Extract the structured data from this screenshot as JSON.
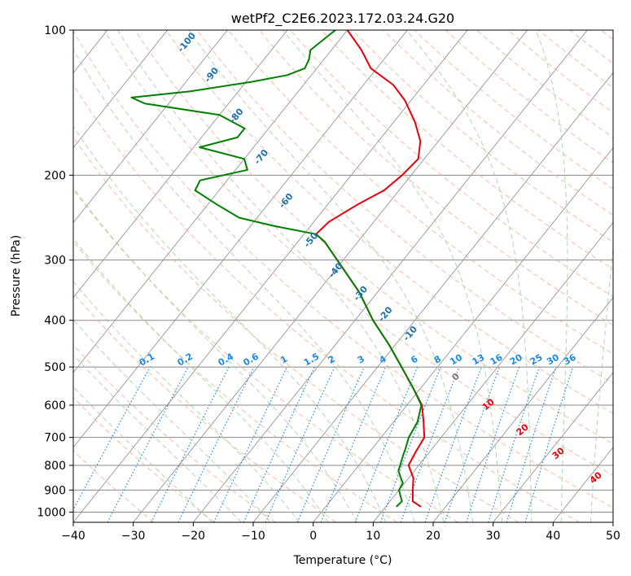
{
  "title": "wetPf2_C2E6.2023.172.03.24.G20",
  "colors": {
    "temperature": "#e8000b",
    "dewpoint": "#008000",
    "dry_adiabat": "#f4a582",
    "moist_adiabat": "#98d098",
    "mixing_ratio": "#1e88e5",
    "isotherm": "#888888"
  },
  "chart_data": {
    "type": "skew-t log-p",
    "xlabel": "Temperature (°C)",
    "ylabel": "Pressure (hPa)",
    "xlim": [
      -40,
      50
    ],
    "ylim": [
      1050,
      100
    ],
    "y_scale": "log",
    "x_ticks": [
      -40,
      -30,
      -20,
      -10,
      0,
      10,
      20,
      30,
      40,
      50
    ],
    "y_ticks": [
      100,
      200,
      300,
      400,
      500,
      600,
      700,
      800,
      900,
      1000
    ],
    "grid": true,
    "series": [
      {
        "key": "temperature",
        "points": [
          [
            975,
            15.9
          ],
          [
            950,
            13.8
          ],
          [
            900,
            12.3
          ],
          [
            850,
            10.8
          ],
          [
            800,
            8.3
          ],
          [
            750,
            7.7
          ],
          [
            700,
            7.2
          ],
          [
            650,
            5.0
          ],
          [
            600,
            2.5
          ],
          [
            550,
            -1.5
          ],
          [
            500,
            -6.0
          ],
          [
            450,
            -11.0
          ],
          [
            400,
            -17.0
          ],
          [
            350,
            -23.0
          ],
          [
            300,
            -31.0
          ],
          [
            275,
            -35.5
          ],
          [
            265,
            -38.0
          ],
          [
            250,
            -37.5
          ],
          [
            230,
            -35.0
          ],
          [
            215,
            -32.5
          ],
          [
            200,
            -31.5
          ],
          [
            185,
            -31.0
          ],
          [
            170,
            -33.0
          ],
          [
            155,
            -36.5
          ],
          [
            140,
            -41.0
          ],
          [
            130,
            -45.0
          ],
          [
            120,
            -51.0
          ],
          [
            110,
            -55.0
          ],
          [
            100,
            -60.0
          ]
        ]
      },
      {
        "key": "dewpoint",
        "points": [
          [
            975,
            11.8
          ],
          [
            950,
            12.0
          ],
          [
            920,
            10.8
          ],
          [
            900,
            10.0
          ],
          [
            870,
            9.7
          ],
          [
            850,
            8.7
          ],
          [
            820,
            7.3
          ],
          [
            800,
            6.9
          ],
          [
            760,
            6.0
          ],
          [
            740,
            5.6
          ],
          [
            700,
            4.6
          ],
          [
            650,
            4.0
          ],
          [
            600,
            2.4
          ],
          [
            550,
            -1.5
          ],
          [
            500,
            -6.0
          ],
          [
            450,
            -11.0
          ],
          [
            400,
            -17.0
          ],
          [
            350,
            -23.0
          ],
          [
            300,
            -31.0
          ],
          [
            275,
            -35.5
          ],
          [
            265,
            -38.0
          ],
          [
            255,
            -46.0
          ],
          [
            245,
            -53.0
          ],
          [
            230,
            -58.5
          ],
          [
            215,
            -64.0
          ],
          [
            205,
            -64.5
          ],
          [
            195,
            -58.0
          ],
          [
            185,
            -60.0
          ],
          [
            175,
            -69.0
          ],
          [
            167,
            -64.0
          ],
          [
            160,
            -64.0
          ],
          [
            150,
            -70.0
          ],
          [
            142,
            -84.0
          ],
          [
            138,
            -87.0
          ],
          [
            134,
            -78.0
          ],
          [
            128,
            -69.0
          ],
          [
            124,
            -64.0
          ],
          [
            120,
            -62.0
          ],
          [
            115,
            -62.5
          ],
          [
            110,
            -63.5
          ],
          [
            100,
            -62.0
          ]
        ]
      }
    ],
    "mixing_ratio_labels": [
      "0.1",
      "0.2",
      "0.4",
      "0.6",
      "1",
      "1.5",
      "2",
      "3",
      "4",
      "6",
      "8",
      "10",
      "13",
      "16",
      "20",
      "25",
      "30",
      "36"
    ],
    "mixing_ratio_values": [
      0.1,
      0.2,
      0.4,
      0.6,
      1,
      1.5,
      2,
      3,
      4,
      6,
      8,
      10,
      13,
      16,
      20,
      25,
      30,
      36
    ],
    "dry_adiabat_labels": [
      "-100",
      "-90",
      "-80",
      "-70",
      "-60",
      "-50",
      "-40",
      "-30",
      "-20",
      "-10"
    ],
    "moist_adiabat_labels": [
      "0",
      "10",
      "20",
      "30",
      "40"
    ]
  }
}
